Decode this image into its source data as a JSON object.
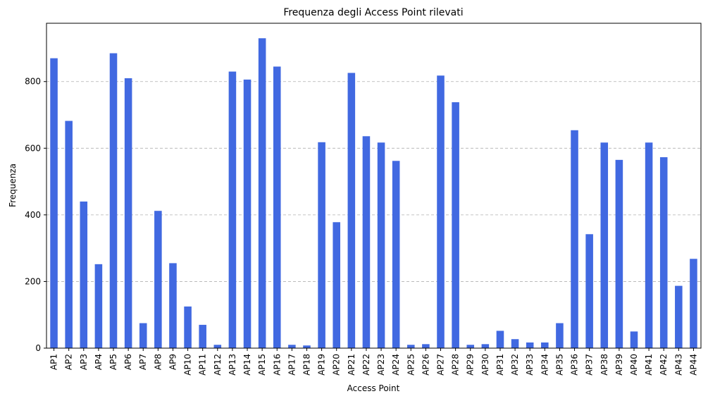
{
  "chart_data": {
    "type": "bar",
    "title": "Frequenza degli Access Point rilevati",
    "xlabel": "Access Point",
    "ylabel": "Frequenza",
    "categories": [
      "AP1",
      "AP2",
      "AP3",
      "AP4",
      "AP5",
      "AP6",
      "AP7",
      "AP8",
      "AP9",
      "AP10",
      "AP11",
      "AP12",
      "AP13",
      "AP14",
      "AP15",
      "AP16",
      "AP17",
      "AP18",
      "AP19",
      "AP20",
      "AP21",
      "AP22",
      "AP23",
      "AP24",
      "AP25",
      "AP26",
      "AP27",
      "AP28",
      "AP29",
      "AP30",
      "AP31",
      "AP32",
      "AP33",
      "AP34",
      "AP35",
      "AP36",
      "AP37",
      "AP38",
      "AP39",
      "AP40",
      "AP41",
      "AP42",
      "AP43",
      "AP44"
    ],
    "values": [
      870,
      682,
      440,
      252,
      885,
      810,
      75,
      412,
      255,
      125,
      70,
      10,
      830,
      806,
      930,
      845,
      10,
      8,
      618,
      378,
      826,
      636,
      617,
      562,
      10,
      12,
      818,
      738,
      10,
      12,
      52,
      27,
      17,
      17,
      75,
      654,
      342,
      617,
      565,
      50,
      617,
      573,
      187,
      268
    ],
    "ylim": [
      0,
      975
    ],
    "yticks": [
      0,
      200,
      400,
      600,
      800
    ],
    "grid": "y-dashed",
    "legend": "none",
    "bar_color": "#4169e1",
    "grid_color": "#b0b0b0"
  }
}
